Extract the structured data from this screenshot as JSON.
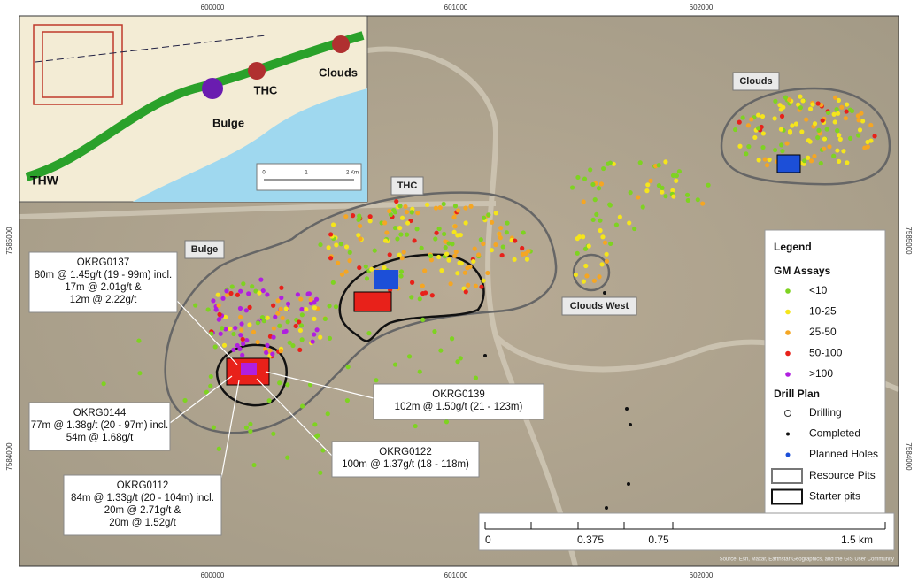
{
  "map": {
    "grid_labels": {
      "top": [
        "600000",
        "601000",
        "602000"
      ],
      "bottom": [
        "600000",
        "601000",
        "602000"
      ],
      "left": [
        "7585000",
        "7584000"
      ],
      "right": [
        "7585000",
        "7584000"
      ]
    },
    "area_labels": [
      "Clouds",
      "THC",
      "Bulge",
      "Clouds West"
    ],
    "callouts": [
      {
        "hole": "OKRG0137",
        "lines": [
          "80m @ 1.45g/t (19 - 99m) incl.",
          "17m @ 2.01g/t &",
          "12m @ 2.22g/t"
        ]
      },
      {
        "hole": "OKRG0139",
        "lines": [
          "102m @ 1.50g/t (21 - 123m)"
        ]
      },
      {
        "hole": "OKRG0144",
        "lines": [
          "77m @ 1.38g/t (20 - 97m) incl.",
          "54m @ 1.68g/t"
        ]
      },
      {
        "hole": "OKRG0122",
        "lines": [
          "100m @ 1.37g/t (18 - 118m)"
        ]
      },
      {
        "hole": "OKRG0112",
        "lines": [
          "84m @ 1.33g/t (20 - 104m) incl.",
          "20m @ 2.71g/t &",
          "20m @ 1.52g/t"
        ]
      }
    ],
    "legend": {
      "title": "Legend",
      "assays_title": "GM Assays",
      "assays": [
        {
          "label": "<10",
          "color": "#7ed321"
        },
        {
          "label": "10-25",
          "color": "#f5e51b"
        },
        {
          "label": "25-50",
          "color": "#f5a623"
        },
        {
          "label": "50-100",
          "color": "#e8211a"
        },
        {
          "label": ">100",
          "color": "#b01fe0"
        }
      ],
      "drill_title": "Drill Plan",
      "drill": [
        "Drilling",
        "Completed",
        "Planned Holes"
      ],
      "pits": [
        "Resource Pits",
        "Starter pits"
      ]
    },
    "scale_bar": [
      "0",
      "0.375",
      "0.75",
      "1.5 km"
    ],
    "inset": {
      "labels": [
        "THW",
        "Bulge",
        "THC",
        "Clouds"
      ],
      "scale": [
        "0",
        "1",
        "2 Km"
      ]
    },
    "attribution": "Source: Esri, Maxar, Earthstar Geographics, and the GIS User Community"
  }
}
